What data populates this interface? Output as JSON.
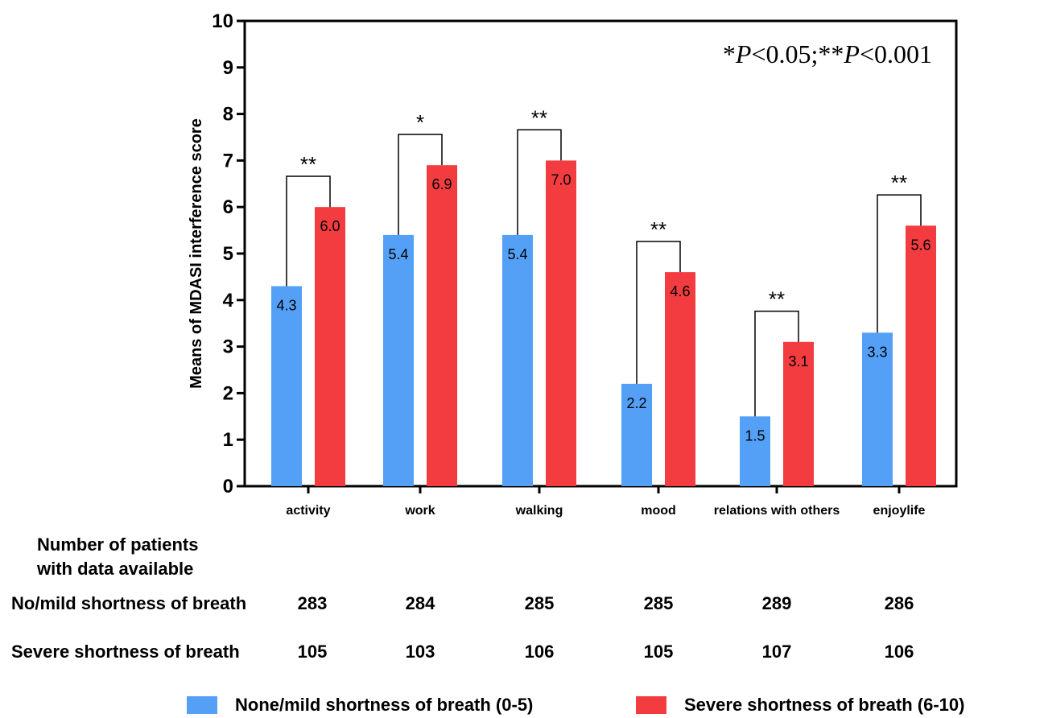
{
  "chart_data": {
    "type": "bar",
    "title": "",
    "ylabel": "Means of MDASI interference score",
    "xlabel": "",
    "ylim": [
      0,
      10
    ],
    "yticks": [
      "0",
      "1",
      "2",
      "3",
      "4",
      "5",
      "6",
      "7",
      "8",
      "9",
      "10"
    ],
    "categories": [
      "activity",
      "work",
      "walking",
      "mood",
      "relations with others",
      "enjoylife"
    ],
    "series": [
      {
        "name": "None/mild shortness of breath (0-5)",
        "color": "#55a0f7",
        "values": [
          4.3,
          5.4,
          5.4,
          2.2,
          1.5,
          3.3
        ],
        "labels": [
          "4.3",
          "5.4",
          "5.4",
          "2.2",
          "1.5",
          "3.3"
        ]
      },
      {
        "name": "Severe shortness of breath (6-10)",
        "color": "#f23c40",
        "values": [
          6.0,
          6.9,
          7.0,
          4.6,
          3.1,
          5.6
        ],
        "labels": [
          "6.0",
          "6.9",
          "7.0",
          "4.6",
          "3.1",
          "5.6"
        ]
      }
    ],
    "significance": [
      "**",
      "*",
      "**",
      "**",
      "**",
      "**"
    ],
    "annotation": "*P<0.05;**P<0.001",
    "grid": false
  },
  "table": {
    "heading_line1": "Number of patients",
    "heading_line2": "with data available",
    "rows": [
      {
        "label": "No/mild shortness of breath",
        "values": [
          "283",
          "284",
          "285",
          "285",
          "289",
          "286"
        ]
      },
      {
        "label": "Severe shortness of breath",
        "values": [
          "105",
          "103",
          "106",
          "105",
          "107",
          "106"
        ]
      }
    ]
  },
  "legend": {
    "items": [
      {
        "label": "None/mild shortness of breath (0-5)",
        "color": "#55a0f7"
      },
      {
        "label": "Severe shortness of breath (6-10)",
        "color": "#f23c40"
      }
    ]
  }
}
